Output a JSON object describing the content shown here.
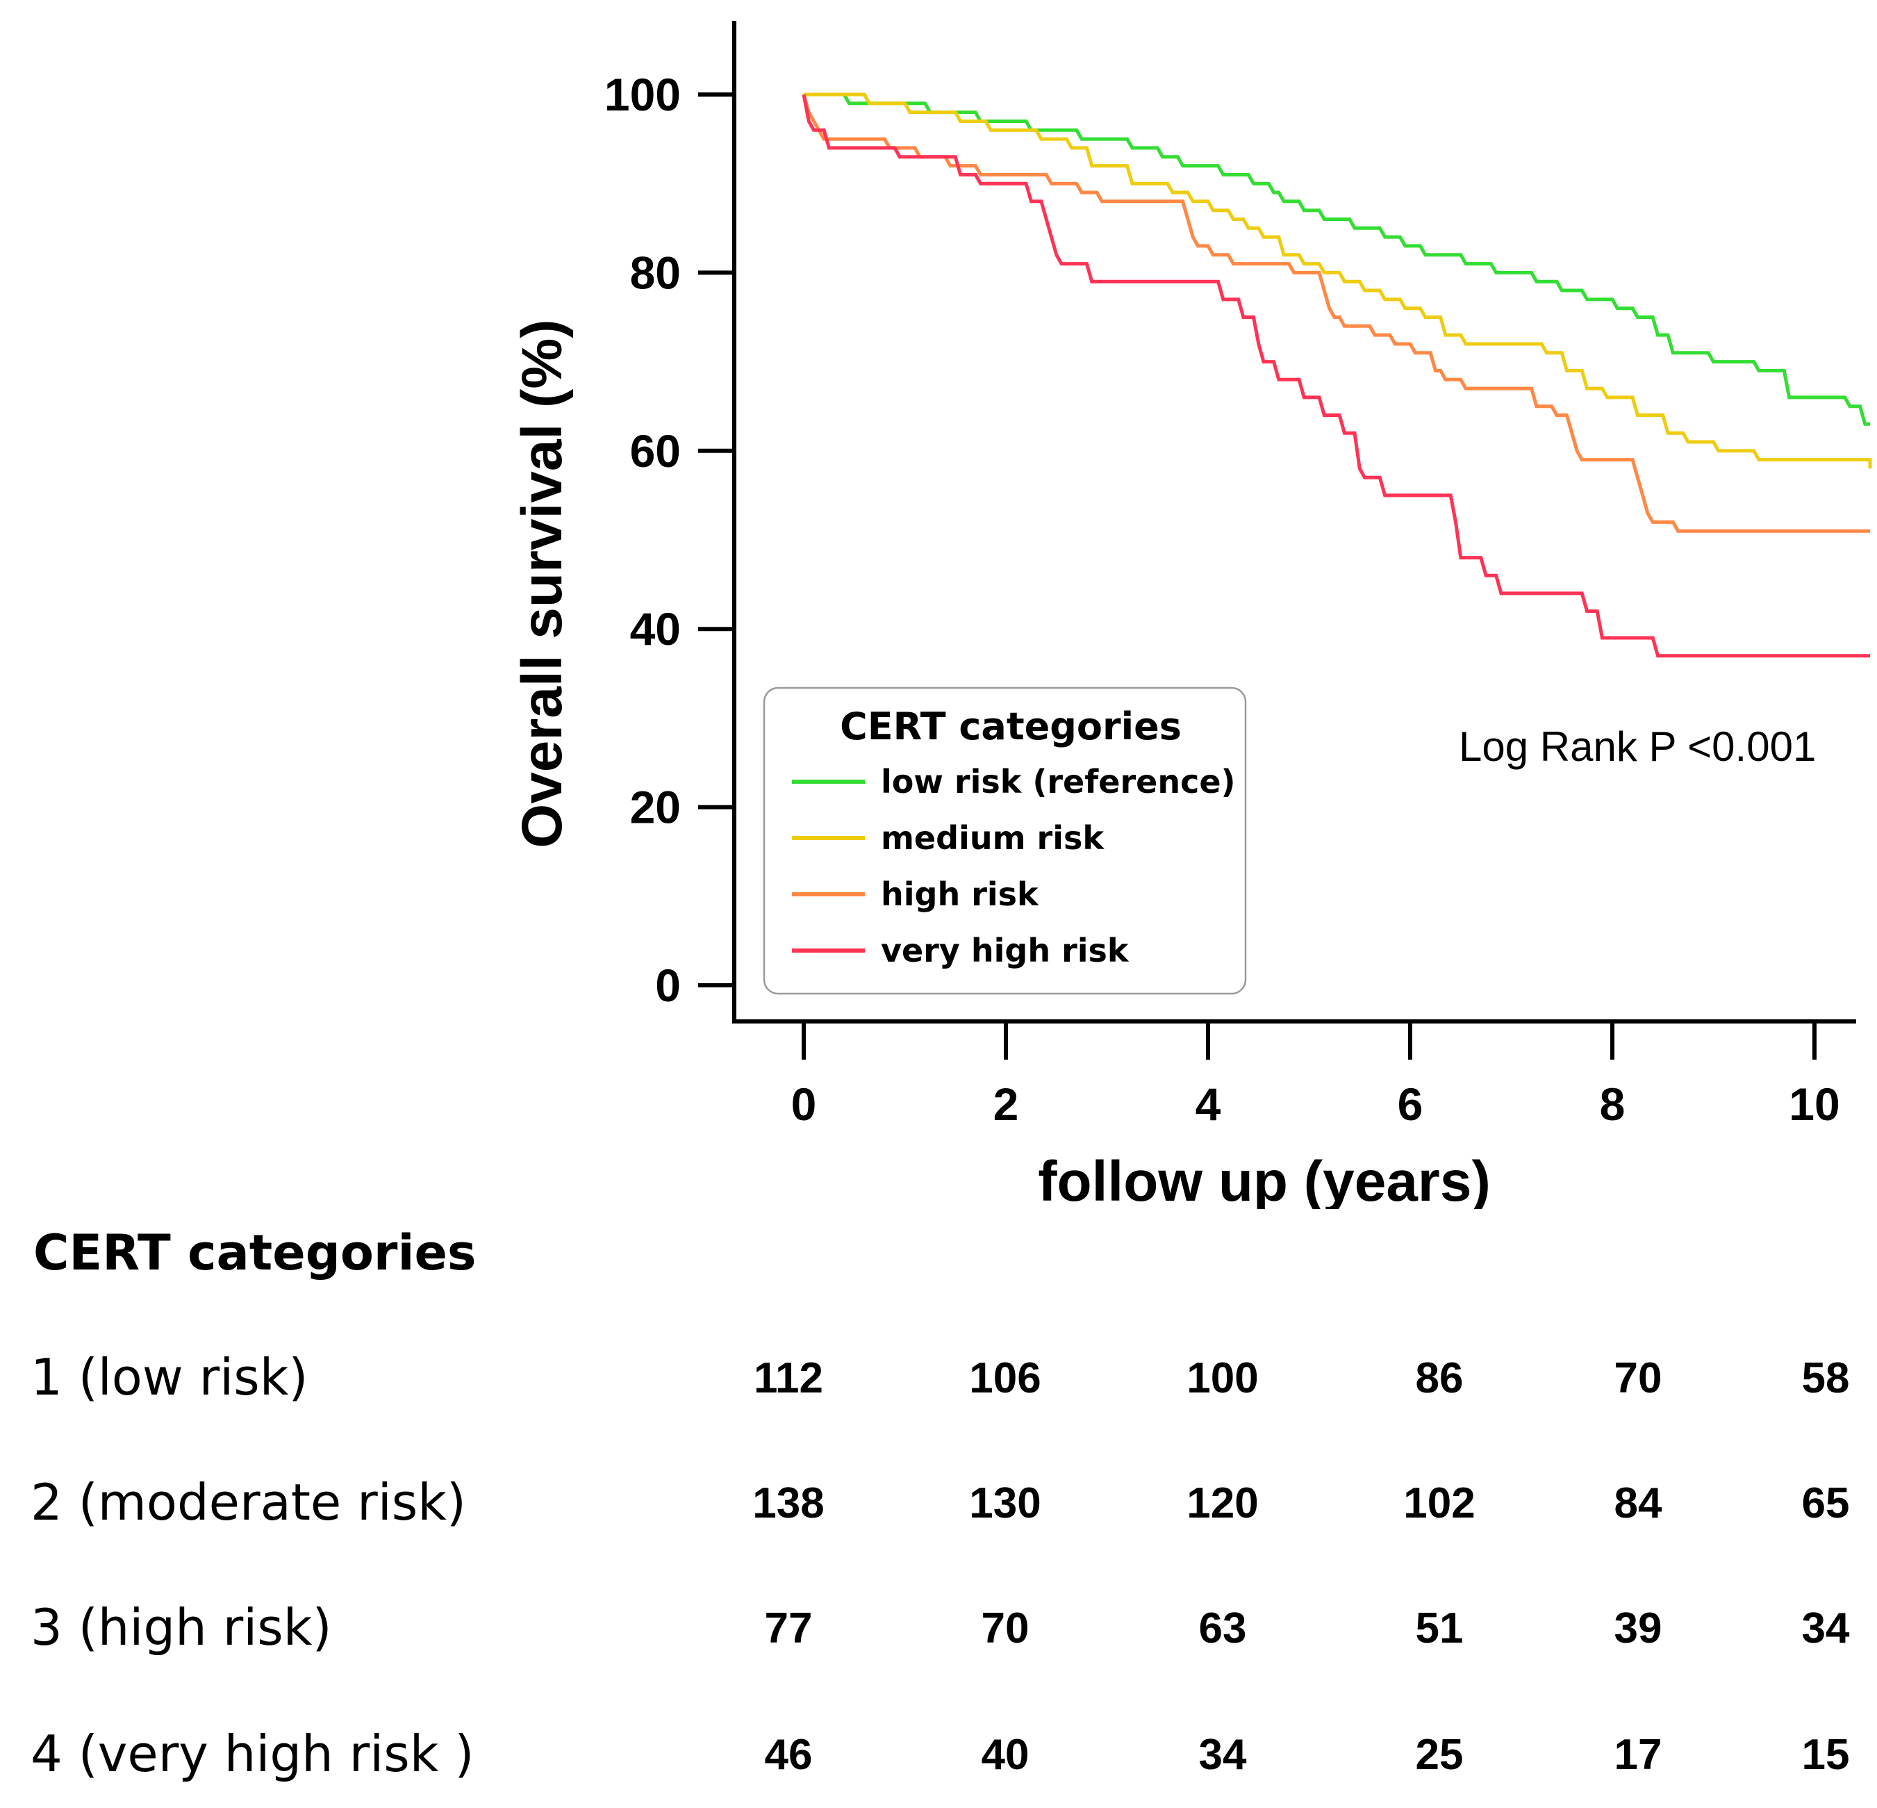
{
  "chart_data": {
    "type": "line",
    "subtype": "kaplan-meier step",
    "ylabel": "Overall survival (%)",
    "xlabel": "follow up (years)",
    "xlim": [
      -0.7,
      10.4
    ],
    "ylim": [
      -4,
      108
    ],
    "xticks": [
      "0",
      "2",
      "4",
      "6",
      "8",
      "10"
    ],
    "xtick_values": [
      0,
      2,
      4,
      6,
      8,
      10
    ],
    "yticks": [
      "0",
      "20",
      "40",
      "60",
      "80",
      "100"
    ],
    "ytick_values": [
      0,
      20,
      40,
      60,
      80,
      100
    ],
    "annotation": "Log Rank P <0.001",
    "legend": {
      "title": "CERT categories",
      "position": "lower-left"
    },
    "series": [
      {
        "name": "low risk (reference)",
        "color": "#33dd33",
        "points": [
          [
            0,
            100
          ],
          [
            0.4,
            100
          ],
          [
            0.45,
            99
          ],
          [
            1.2,
            99
          ],
          [
            1.25,
            98
          ],
          [
            1.7,
            98
          ],
          [
            1.75,
            97
          ],
          [
            2.2,
            97
          ],
          [
            2.25,
            96
          ],
          [
            2.7,
            96
          ],
          [
            2.75,
            95
          ],
          [
            3.2,
            95
          ],
          [
            3.25,
            94
          ],
          [
            3.5,
            94
          ],
          [
            3.55,
            93
          ],
          [
            3.7,
            93
          ],
          [
            3.75,
            92
          ],
          [
            4.1,
            92
          ],
          [
            4.15,
            91
          ],
          [
            4.4,
            91
          ],
          [
            4.45,
            90
          ],
          [
            4.6,
            90
          ],
          [
            4.65,
            89
          ],
          [
            4.7,
            89
          ],
          [
            4.75,
            88
          ],
          [
            4.9,
            88
          ],
          [
            4.95,
            87
          ],
          [
            5.1,
            87
          ],
          [
            5.15,
            86
          ],
          [
            5.4,
            86
          ],
          [
            5.45,
            85
          ],
          [
            5.7,
            85
          ],
          [
            5.75,
            84
          ],
          [
            5.9,
            84
          ],
          [
            5.95,
            83
          ],
          [
            6.1,
            83
          ],
          [
            6.15,
            82
          ],
          [
            6.5,
            82
          ],
          [
            6.55,
            81
          ],
          [
            6.8,
            81
          ],
          [
            6.85,
            80
          ],
          [
            7.2,
            80
          ],
          [
            7.25,
            79
          ],
          [
            7.45,
            79
          ],
          [
            7.5,
            78
          ],
          [
            7.7,
            78
          ],
          [
            7.75,
            77
          ],
          [
            8.0,
            77
          ],
          [
            8.05,
            76
          ],
          [
            8.2,
            76
          ],
          [
            8.25,
            75
          ],
          [
            8.4,
            75
          ],
          [
            8.45,
            73
          ],
          [
            8.55,
            73
          ],
          [
            8.6,
            71
          ],
          [
            8.95,
            71
          ],
          [
            9.0,
            70
          ],
          [
            9.4,
            70
          ],
          [
            9.45,
            69
          ],
          [
            9.7,
            69
          ],
          [
            9.75,
            66
          ],
          [
            10.3,
            66
          ],
          [
            10.35,
            65
          ],
          [
            10.45,
            65
          ],
          [
            10.5,
            63
          ],
          [
            10.55,
            63
          ]
        ]
      },
      {
        "name": "medium risk",
        "color": "#eecc11",
        "points": [
          [
            0,
            100
          ],
          [
            0.6,
            100
          ],
          [
            0.65,
            99
          ],
          [
            1.0,
            99
          ],
          [
            1.05,
            98
          ],
          [
            1.5,
            98
          ],
          [
            1.55,
            97
          ],
          [
            1.8,
            97
          ],
          [
            1.85,
            96
          ],
          [
            2.3,
            96
          ],
          [
            2.35,
            95
          ],
          [
            2.6,
            95
          ],
          [
            2.65,
            94
          ],
          [
            2.8,
            94
          ],
          [
            2.85,
            92
          ],
          [
            3.2,
            92
          ],
          [
            3.25,
            90
          ],
          [
            3.6,
            90
          ],
          [
            3.65,
            89
          ],
          [
            3.8,
            89
          ],
          [
            3.85,
            88
          ],
          [
            4.0,
            88
          ],
          [
            4.05,
            87
          ],
          [
            4.2,
            87
          ],
          [
            4.25,
            86
          ],
          [
            4.35,
            86
          ],
          [
            4.4,
            85
          ],
          [
            4.5,
            85
          ],
          [
            4.55,
            84
          ],
          [
            4.7,
            84
          ],
          [
            4.75,
            82
          ],
          [
            4.9,
            82
          ],
          [
            4.95,
            81
          ],
          [
            5.1,
            81
          ],
          [
            5.15,
            80
          ],
          [
            5.3,
            80
          ],
          [
            5.35,
            79
          ],
          [
            5.5,
            79
          ],
          [
            5.55,
            78
          ],
          [
            5.7,
            78
          ],
          [
            5.75,
            77
          ],
          [
            5.9,
            77
          ],
          [
            5.95,
            76
          ],
          [
            6.1,
            76
          ],
          [
            6.15,
            75
          ],
          [
            6.3,
            75
          ],
          [
            6.35,
            73
          ],
          [
            6.5,
            73
          ],
          [
            6.55,
            72
          ],
          [
            7.3,
            72
          ],
          [
            7.35,
            71
          ],
          [
            7.5,
            71
          ],
          [
            7.55,
            69
          ],
          [
            7.7,
            69
          ],
          [
            7.75,
            67
          ],
          [
            7.9,
            67
          ],
          [
            7.95,
            66
          ],
          [
            8.2,
            66
          ],
          [
            8.25,
            64
          ],
          [
            8.5,
            64
          ],
          [
            8.55,
            62
          ],
          [
            8.7,
            62
          ],
          [
            8.75,
            61
          ],
          [
            9.0,
            61
          ],
          [
            9.05,
            60
          ],
          [
            9.4,
            60
          ],
          [
            9.45,
            59
          ],
          [
            10.55,
            59
          ],
          [
            10.55,
            58
          ]
        ]
      },
      {
        "name": "high risk",
        "color": "#ff8844",
        "points": [
          [
            0,
            100
          ],
          [
            0.05,
            98
          ],
          [
            0.15,
            96
          ],
          [
            0.2,
            95
          ],
          [
            0.8,
            95
          ],
          [
            0.85,
            94
          ],
          [
            1.1,
            94
          ],
          [
            1.15,
            93
          ],
          [
            1.4,
            93
          ],
          [
            1.45,
            92
          ],
          [
            1.7,
            92
          ],
          [
            1.75,
            91
          ],
          [
            2.4,
            91
          ],
          [
            2.45,
            90
          ],
          [
            2.7,
            90
          ],
          [
            2.75,
            89
          ],
          [
            2.9,
            89
          ],
          [
            2.95,
            88
          ],
          [
            3.75,
            88
          ],
          [
            3.8,
            86
          ],
          [
            3.85,
            84
          ],
          [
            3.9,
            83
          ],
          [
            4.0,
            83
          ],
          [
            4.05,
            82
          ],
          [
            4.2,
            82
          ],
          [
            4.25,
            81
          ],
          [
            4.8,
            81
          ],
          [
            4.85,
            80
          ],
          [
            5.1,
            80
          ],
          [
            5.15,
            78
          ],
          [
            5.2,
            76
          ],
          [
            5.25,
            75
          ],
          [
            5.3,
            75
          ],
          [
            5.35,
            74
          ],
          [
            5.6,
            74
          ],
          [
            5.65,
            73
          ],
          [
            5.8,
            73
          ],
          [
            5.85,
            72
          ],
          [
            6.0,
            72
          ],
          [
            6.05,
            71
          ],
          [
            6.2,
            71
          ],
          [
            6.25,
            69
          ],
          [
            6.3,
            69
          ],
          [
            6.35,
            68
          ],
          [
            6.5,
            68
          ],
          [
            6.55,
            67
          ],
          [
            7.2,
            67
          ],
          [
            7.25,
            65
          ],
          [
            7.4,
            65
          ],
          [
            7.45,
            64
          ],
          [
            7.55,
            64
          ],
          [
            7.6,
            62
          ],
          [
            7.65,
            60
          ],
          [
            7.7,
            59
          ],
          [
            8.2,
            59
          ],
          [
            8.25,
            57
          ],
          [
            8.3,
            55
          ],
          [
            8.35,
            53
          ],
          [
            8.4,
            52
          ],
          [
            8.6,
            52
          ],
          [
            8.65,
            51
          ],
          [
            10.55,
            51
          ]
        ]
      },
      {
        "name": "very high risk",
        "color": "#ff3355",
        "points": [
          [
            0,
            100
          ],
          [
            0.05,
            97
          ],
          [
            0.1,
            96
          ],
          [
            0.2,
            96
          ],
          [
            0.25,
            94
          ],
          [
            0.9,
            94
          ],
          [
            0.95,
            93
          ],
          [
            1.5,
            93
          ],
          [
            1.55,
            91
          ],
          [
            1.7,
            91
          ],
          [
            1.75,
            90
          ],
          [
            2.2,
            90
          ],
          [
            2.25,
            88
          ],
          [
            2.35,
            88
          ],
          [
            2.4,
            86
          ],
          [
            2.45,
            84
          ],
          [
            2.5,
            82
          ],
          [
            2.55,
            81
          ],
          [
            2.8,
            81
          ],
          [
            2.85,
            79
          ],
          [
            4.1,
            79
          ],
          [
            4.15,
            77
          ],
          [
            4.3,
            77
          ],
          [
            4.35,
            75
          ],
          [
            4.45,
            75
          ],
          [
            4.5,
            72
          ],
          [
            4.55,
            70
          ],
          [
            4.65,
            70
          ],
          [
            4.7,
            68
          ],
          [
            4.9,
            68
          ],
          [
            4.95,
            66
          ],
          [
            5.1,
            66
          ],
          [
            5.15,
            64
          ],
          [
            5.3,
            64
          ],
          [
            5.35,
            62
          ],
          [
            5.45,
            62
          ],
          [
            5.5,
            58
          ],
          [
            5.55,
            57
          ],
          [
            5.7,
            57
          ],
          [
            5.75,
            55
          ],
          [
            6.4,
            55
          ],
          [
            6.45,
            52
          ],
          [
            6.5,
            48
          ],
          [
            6.7,
            48
          ],
          [
            6.75,
            46
          ],
          [
            6.85,
            46
          ],
          [
            6.9,
            44
          ],
          [
            7.7,
            44
          ],
          [
            7.75,
            42
          ],
          [
            7.85,
            42
          ],
          [
            7.9,
            39
          ],
          [
            8.4,
            39
          ],
          [
            8.45,
            37
          ],
          [
            10.55,
            37
          ]
        ]
      }
    ],
    "risk_table": {
      "title": "CERT categories",
      "columns": [
        "0",
        "2",
        "4",
        "6",
        "8",
        "10"
      ],
      "rows": [
        {
          "label": "1 (low risk)",
          "values": [
            "112",
            "106",
            "100",
            "86",
            "70",
            "58"
          ]
        },
        {
          "label": "2 (moderate risk)",
          "values": [
            "138",
            "130",
            "120",
            "102",
            "84",
            "65"
          ]
        },
        {
          "label": "3 (high risk)",
          "values": [
            "77",
            "70",
            "63",
            "51",
            "39",
            "34"
          ]
        },
        {
          "label": "4 (very high risk )",
          "values": [
            "46",
            "40",
            "34",
            "25",
            "17",
            "15"
          ]
        }
      ]
    }
  }
}
